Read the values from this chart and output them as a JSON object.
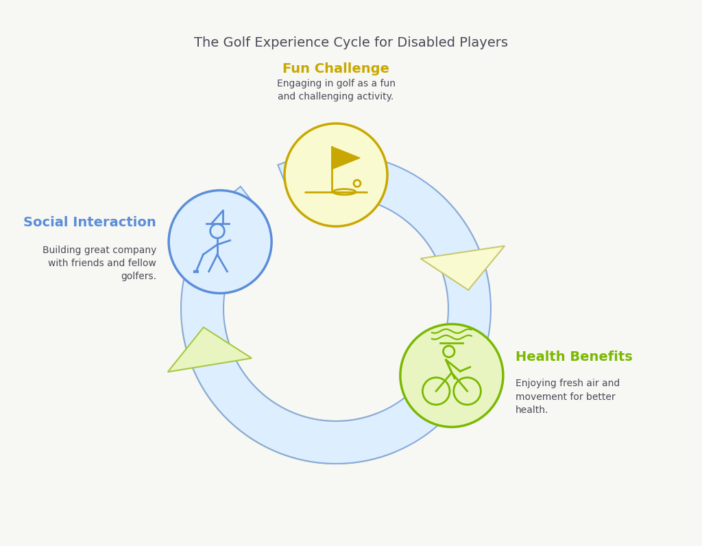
{
  "title": "The Golf Experience Cycle for Disabled Players",
  "title_color": "#4a4a5a",
  "title_fontsize": 14,
  "background_color": "#f7f7f3",
  "sections": [
    {
      "name": "Fun Challenge",
      "name_color": "#c8a800",
      "description": "Engaging in golf as a fun\nand challenging activity.",
      "desc_color": "#4a4a5a",
      "arc_color": "#fafad0",
      "arc_border": "#c8c870",
      "circle_color": "#fafad0",
      "border_color": "#c8a800",
      "icon_color": "#c8a800"
    },
    {
      "name": "Health Benefits",
      "name_color": "#7ab800",
      "description": "Enjoying fresh air and\nmovement for better\nhealth.",
      "desc_color": "#4a4a5a",
      "arc_color": "#e8f5c0",
      "arc_border": "#a8c840",
      "circle_color": "#e8f5c0",
      "border_color": "#7ab800",
      "icon_color": "#7ab800"
    },
    {
      "name": "Social Interaction",
      "name_color": "#5b8dd9",
      "description": "Building great company\nwith friends and fellow\ngolfers.",
      "desc_color": "#4a4a5a",
      "arc_color": "#ddeeff",
      "arc_border": "#88aadd",
      "circle_color": "#ddeeff",
      "border_color": "#5b8dd9",
      "icon_color": "#5b8dd9"
    }
  ]
}
